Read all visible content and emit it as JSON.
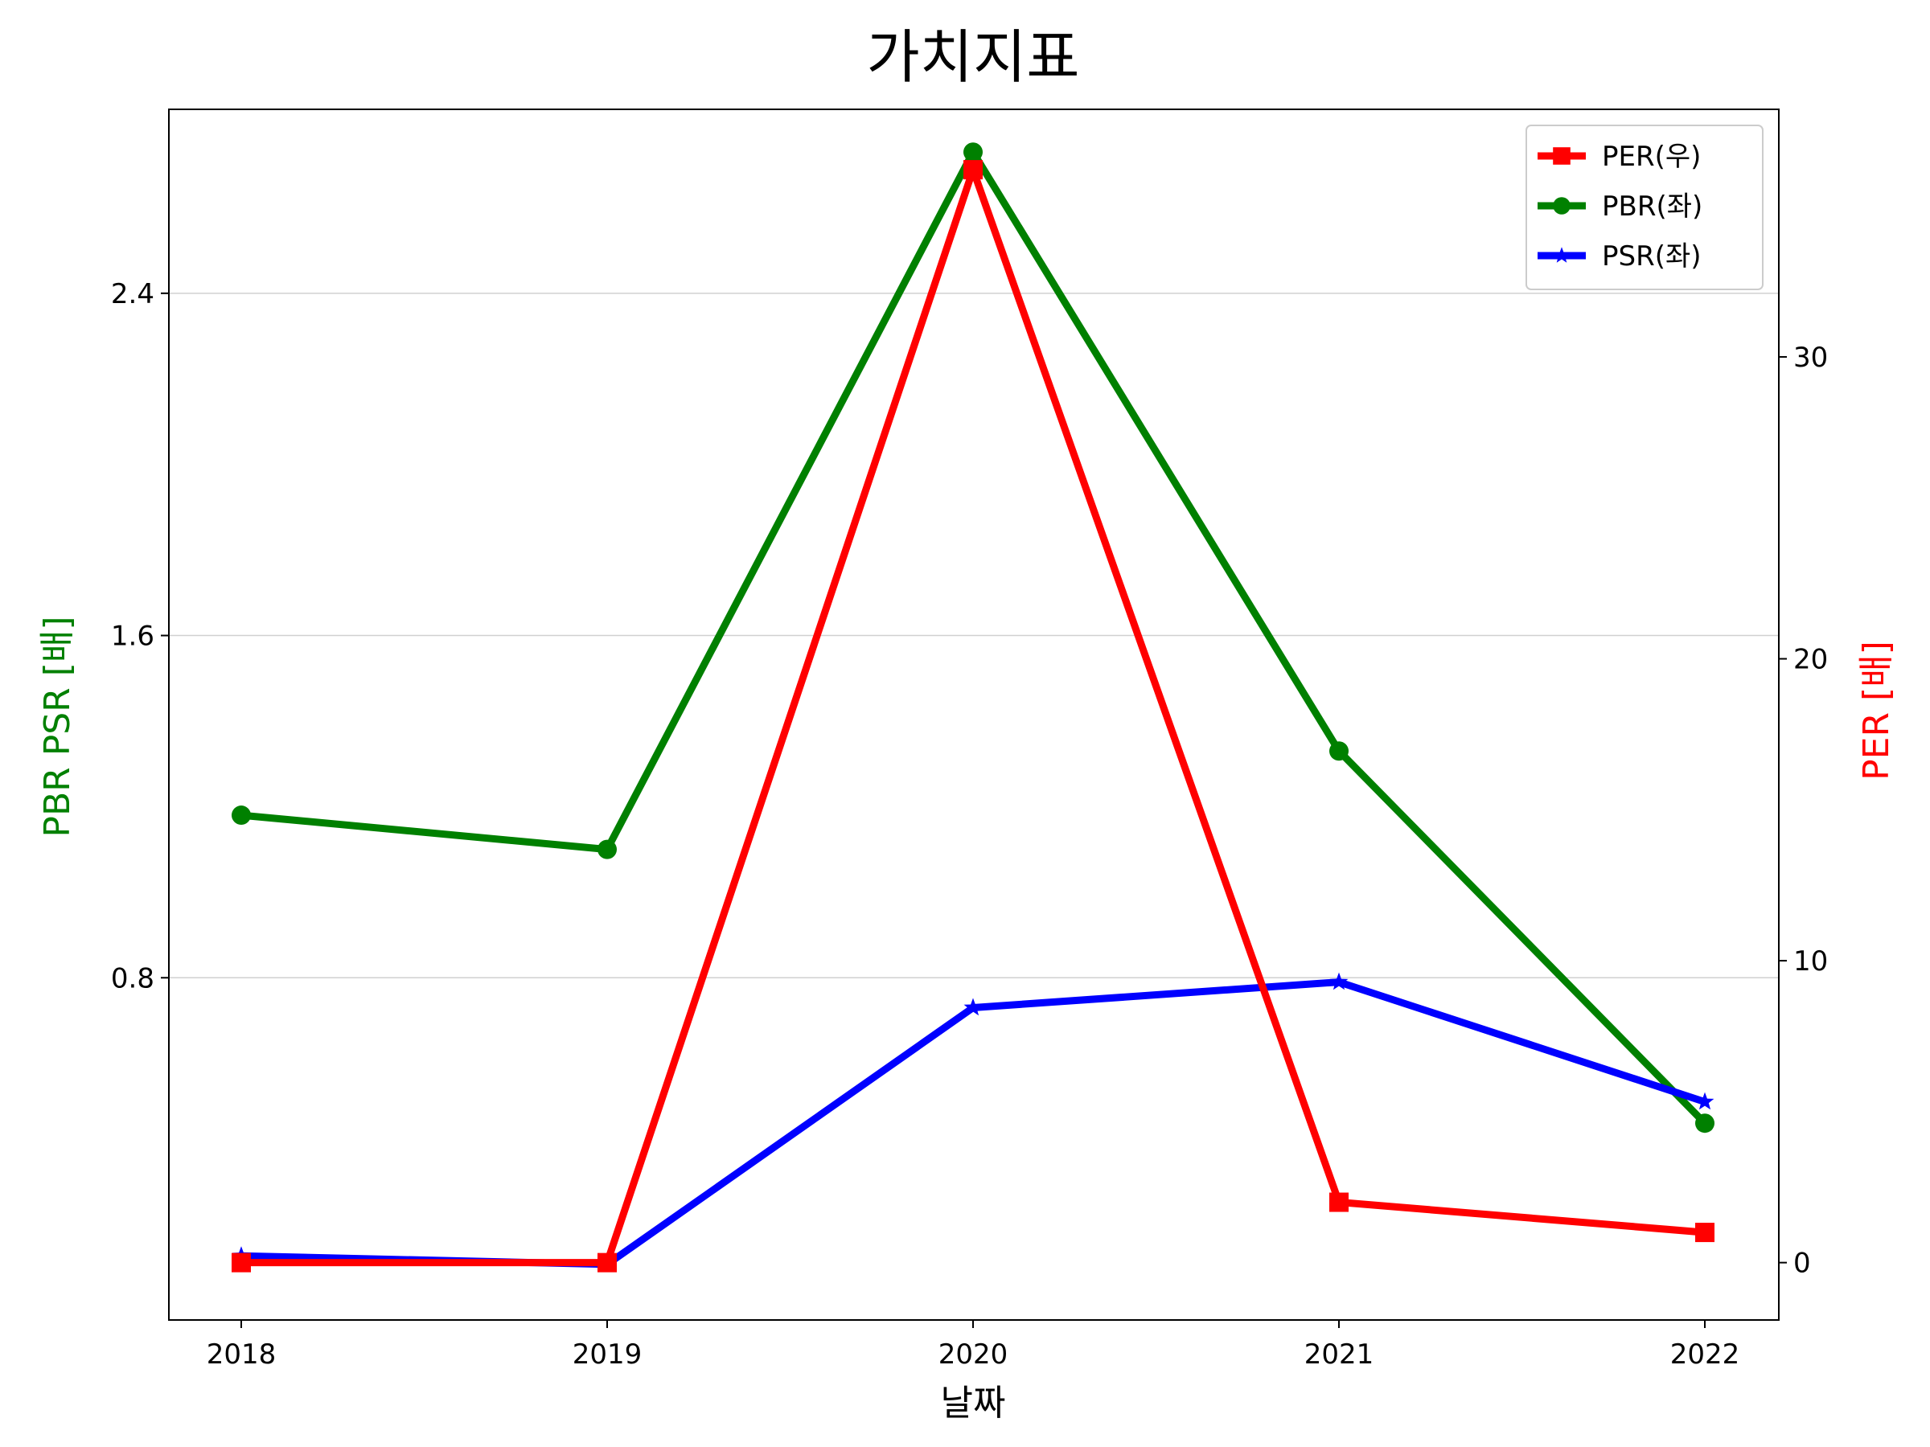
{
  "chart_data": {
    "type": "line",
    "title": "가치지표",
    "xlabel": "날짜",
    "ylabel_left": "PBR PSR [배]",
    "ylabel_right": "PER [배]",
    "categories": [
      "2018",
      "2019",
      "2020",
      "2021",
      "2022"
    ],
    "left_axis": {
      "ylim": [
        0.0,
        2.83
      ],
      "ticks": [
        0.8,
        1.6,
        2.4
      ],
      "tick_labels": [
        "0.8",
        "1.6",
        "2.4"
      ]
    },
    "right_axis": {
      "ylim": [
        -1.9,
        38.2
      ],
      "ticks": [
        0,
        10,
        20,
        30
      ],
      "tick_labels": [
        "0",
        "10",
        "20",
        "30"
      ]
    },
    "grid": "horizontal-left",
    "legend": "top-right",
    "colors": {
      "per": "#ff0000",
      "pbr": "#008000",
      "psr": "#0000ff",
      "left_label": "#008000",
      "right_label": "#ff0000"
    },
    "series": [
      {
        "key": "per",
        "name": "PER(우)",
        "axis": "right",
        "marker": "square",
        "values": [
          0.0,
          0.0,
          36.2,
          2.0,
          1.0
        ]
      },
      {
        "key": "pbr",
        "name": "PBR(좌)",
        "axis": "left",
        "marker": "circle",
        "values": [
          1.18,
          1.1,
          2.73,
          1.33,
          0.46
        ]
      },
      {
        "key": "psr",
        "name": "PSR(좌)",
        "axis": "left",
        "marker": "star",
        "values": [
          0.15,
          0.13,
          0.73,
          0.79,
          0.51
        ]
      }
    ]
  }
}
